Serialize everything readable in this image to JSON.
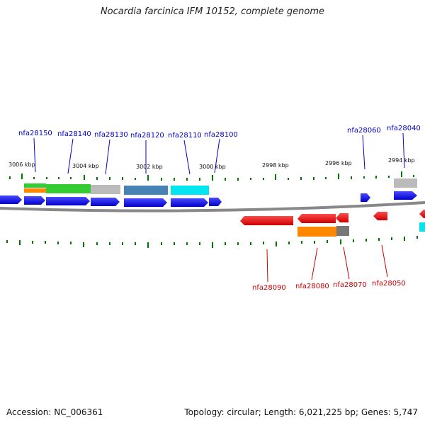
{
  "title": "Nocardia farcinica IFM 10152, complete genome",
  "footer": {
    "accession": "Accession: NC_006361",
    "summary": "Topology: circular; Length: 6,021,225 bp; Genes: 5,747"
  },
  "colors": {
    "forward_label": "#0000cc",
    "reverse_label": "#cc0000",
    "forward_gene": "#0000ee",
    "reverse_gene": "#ee0000",
    "tick": "#007700",
    "backbone": "#888888"
  },
  "scale_labels": [
    "3006 kbp",
    "3004 kbp",
    "3002 kbp",
    "3000 kbp",
    "2998 kbp",
    "2996 kbp",
    "2994 kbp"
  ],
  "forward_genes": [
    "nfa28150",
    "nfa28140",
    "nfa28130",
    "nfa28120",
    "nfa28110",
    "nfa28100",
    "nfa28060",
    "nfa28040"
  ],
  "reverse_genes": [
    "nfa28090",
    "nfa28080",
    "nfa28070",
    "nfa28050"
  ]
}
